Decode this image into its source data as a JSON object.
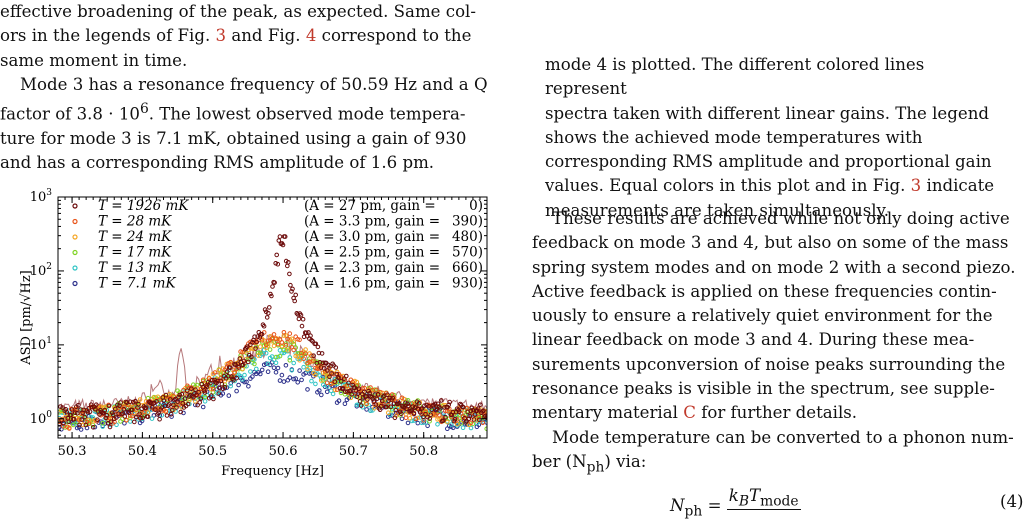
{
  "left": {
    "para1_lines": [
      "effective broadening of the peak, as expected. Same col-",
      "ors in the legends of Fig. ",
      " and Fig. ",
      " correspond to the",
      "same moment in time."
    ],
    "fig_ref_3": "3",
    "fig_ref_4": "4",
    "para2_lines": [
      "Mode 3 has a resonance frequency of 50.59 Hz and a Q",
      "factor of 3.8 · 10",
      "6",
      ". The lowest observed mode tempera-",
      "ture for mode 3 is 7.1 mK, obtained using a gain of 930",
      "and has a corresponding RMS amplitude of 1.6 pm."
    ]
  },
  "caption": {
    "lines": [
      "mode 4 is plotted. The different colored lines represent",
      "spectra taken with different linear gains. The legend",
      "shows the achieved mode temperatures with",
      "corresponding RMS amplitude and proportional gain",
      "values. Equal colors in this plot and in Fig. ",
      " indicate",
      "measurements are taken simultaneously."
    ],
    "fig_ref": "3"
  },
  "right": {
    "para1_lines": [
      "These results are achieved while not only doing active",
      "feedback on mode 3 and 4, but also on some of the mass",
      "spring system modes and on mode 2 with a second piezo.",
      "Active feedback is applied on these frequencies contin-",
      "uously to ensure a relatively quiet environment for the",
      "linear feedback on mode 3 and 4. During these mea-",
      "surements upconversion of noise peaks surrounding the",
      "resonance peaks is visible in the spectrum, see supple-",
      "mentary material ",
      " for further details."
    ],
    "appendix_ref": "C",
    "para2_lines": [
      "Mode temperature can be converted to a phonon num-",
      "ber (N",
      "ph",
      ") via:"
    ],
    "equation": {
      "lhs": "N",
      "lhs_sub": "ph",
      "eq": "=",
      "num": "k",
      "num_sub": "B",
      "num_T": "T",
      "num_T_sub": "mode",
      "number": "(4)"
    }
  },
  "chart_data": {
    "type": "scatter",
    "xlabel": "Frequency [Hz]",
    "ylabel": "ASD [pm/√Hz]",
    "yscale": "log",
    "xlim": [
      50.28,
      50.89
    ],
    "ylim": [
      0.55,
      1000
    ],
    "xticks": [
      "50.3",
      "50.4",
      "50.5",
      "50.6",
      "50.7",
      "50.8"
    ],
    "yticks": [
      "10^0",
      "10^1",
      "10^2",
      "10^3"
    ],
    "background_line": {
      "color": "#b5777a",
      "peak_x": 50.455,
      "peak_y": 6.5
    },
    "series": [
      {
        "T_label": "T = 1926 mK",
        "A_label": "(A = 27 pm, gain =",
        "gain": "0)",
        "color": "#6b0a0a",
        "peak": 300,
        "width": 0.007,
        "floor": 0.8
      },
      {
        "T_label": "T =   28 mK",
        "A_label": "(A = 3.3 pm, gain =",
        "gain": "390)",
        "color": "#e8541a",
        "peak": 13,
        "width": 0.045,
        "floor": 0.75
      },
      {
        "T_label": "T =   24 mK",
        "A_label": "(A = 3.0 pm, gain =",
        "gain": "480)",
        "color": "#f5a623",
        "peak": 10.5,
        "width": 0.05,
        "floor": 0.75
      },
      {
        "T_label": "T =   17 mK",
        "A_label": "(A = 2.5 pm, gain =",
        "gain": "570)",
        "color": "#7ed321",
        "peak": 9,
        "width": 0.055,
        "floor": 0.75
      },
      {
        "T_label": "T =   13 mK",
        "A_label": "(A = 2.3 pm, gain =",
        "gain": "660)",
        "color": "#2ec4c4",
        "peak": 6.5,
        "width": 0.06,
        "floor": 0.75
      },
      {
        "T_label": "T =  7.1 mK",
        "A_label": "(A = 1.6 pm, gain =",
        "gain": "930)",
        "color": "#2b2f8a",
        "peak": 3.8,
        "width": 0.075,
        "floor": 0.72
      }
    ],
    "center_x": 50.59
  }
}
